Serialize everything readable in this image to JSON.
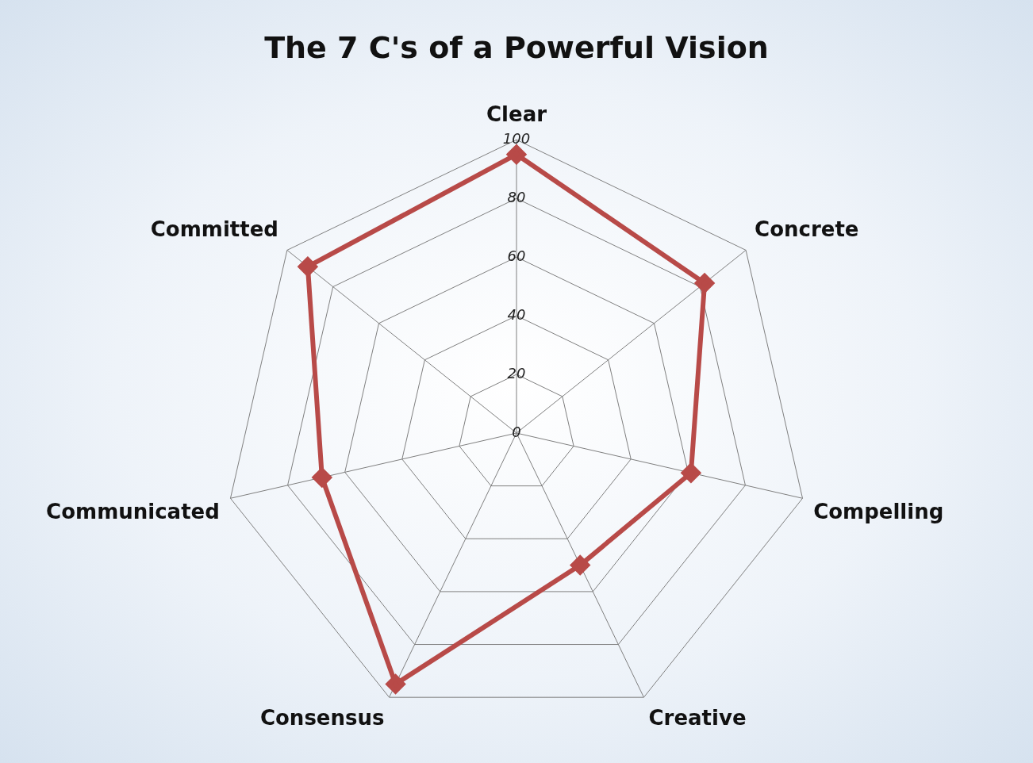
{
  "chart_data": {
    "type": "radar",
    "title": "The 7 C's of a Powerful Vision",
    "categories": [
      "Clear",
      "Concrete",
      "Compelling",
      "Creative",
      "Consensus",
      "Communicated",
      "Committed"
    ],
    "series": [
      {
        "color": "#b84a48",
        "values": [
          95,
          82,
          61,
          50,
          95,
          68,
          91
        ]
      }
    ],
    "ylim": [
      0,
      100
    ],
    "yticks": [
      0,
      20,
      40,
      60,
      80,
      100
    ],
    "grid": true,
    "marker": "diamond"
  }
}
